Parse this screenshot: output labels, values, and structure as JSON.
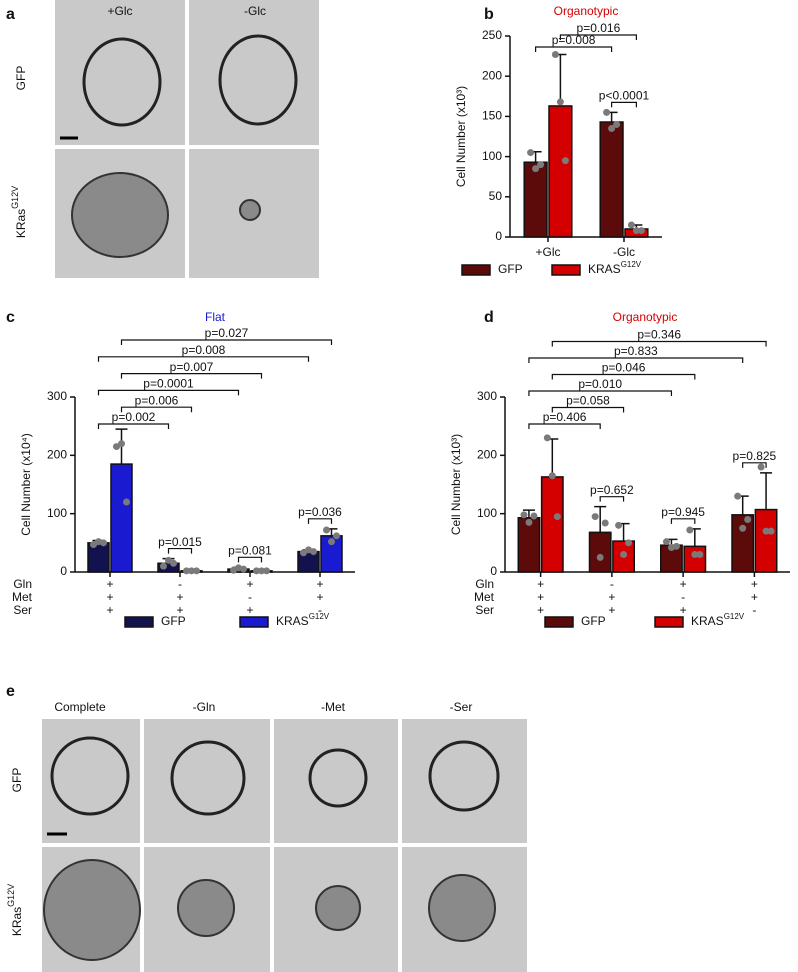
{
  "figure": {
    "panels": [
      "a",
      "b",
      "c",
      "d",
      "e"
    ],
    "panel_a": {
      "columns": [
        "+Glc",
        "-Glc"
      ],
      "rows": [
        {
          "label": "GFP"
        },
        {
          "label": "KRas",
          "sup": "G12V"
        }
      ]
    },
    "panel_e": {
      "columns": [
        "Complete",
        "-Gln",
        "-Met",
        "-Ser"
      ],
      "rows": [
        {
          "label": "GFP"
        },
        {
          "label": "KRas",
          "sup": "G12V"
        }
      ]
    }
  },
  "chart_data": [
    {
      "type": "bar",
      "title": "Organotypic",
      "title_color": "#d40000",
      "y_label": "Cell Number (x10³)",
      "categories": [
        "+Glc",
        "-Glc"
      ],
      "ylim": [
        0,
        250
      ],
      "yticks": [
        0,
        50,
        100,
        150,
        200,
        250
      ],
      "series": [
        {
          "name": "GFP",
          "color": "#5c0a0a",
          "values": [
            93,
            143
          ],
          "errors": [
            13,
            12
          ],
          "points": [
            [
              105,
              85,
              90
            ],
            [
              155,
              135,
              140
            ]
          ]
        },
        {
          "name": "KRAS",
          "name_sup": "G12V",
          "color": "#d40000",
          "values": [
            163,
            10
          ],
          "errors": [
            64,
            5
          ],
          "points": [
            [
              227,
              168,
              95
            ],
            [
              15,
              8,
              8
            ]
          ]
        }
      ],
      "comparisons": [
        {
          "label": "p=0.008",
          "bars": [
            [
              0,
              0
            ],
            [
              1,
              0
            ]
          ]
        },
        {
          "label": "p=0.016",
          "bars": [
            [
              0,
              1
            ],
            [
              1,
              1
            ]
          ]
        },
        {
          "label": "p<0.0001",
          "bars": [
            [
              1,
              0
            ],
            [
              1,
              1
            ]
          ]
        }
      ]
    },
    {
      "type": "bar",
      "title": "Flat",
      "title_color": "#1a1ad0",
      "y_label": "Cell Number (x10⁴)",
      "conditions": {
        "rows": [
          "Gln",
          "Met",
          "Ser"
        ],
        "values": [
          [
            "+",
            "-",
            "+",
            "+"
          ],
          [
            "+",
            "+",
            "-",
            "+"
          ],
          [
            "+",
            "+",
            "+",
            "-"
          ]
        ]
      },
      "ylim": [
        0,
        300
      ],
      "yticks": [
        0,
        100,
        200,
        300
      ],
      "series": [
        {
          "name": "GFP",
          "color": "#12124f",
          "values": [
            50,
            15,
            5,
            35
          ],
          "errors": [
            4,
            8,
            3,
            3
          ],
          "points": [
            [
              47,
              52,
              50
            ],
            [
              10,
              20,
              15
            ],
            [
              3,
              7,
              5
            ],
            [
              33,
              38,
              35
            ]
          ]
        },
        {
          "name": "KRAS",
          "name_sup": "G12V",
          "color": "#1a1ad0",
          "values": [
            185,
            2,
            2,
            62
          ],
          "errors": [
            60,
            1,
            1,
            12
          ],
          "points": [
            [
              215,
              220,
              120
            ],
            [
              2,
              2,
              2
            ],
            [
              2,
              2,
              2
            ],
            [
              72,
              52,
              62
            ]
          ]
        }
      ],
      "comparisons": [
        {
          "label": "p=0.002",
          "bars": [
            [
              0,
              0
            ],
            [
              1,
              0
            ]
          ]
        },
        {
          "label": "p=0.006",
          "bars": [
            [
              0,
              1
            ],
            [
              1,
              1
            ]
          ]
        },
        {
          "label": "p=0.0001",
          "bars": [
            [
              0,
              0
            ],
            [
              2,
              0
            ]
          ]
        },
        {
          "label": "p=0.007",
          "bars": [
            [
              0,
              1
            ],
            [
              2,
              1
            ]
          ]
        },
        {
          "label": "p=0.008",
          "bars": [
            [
              0,
              0
            ],
            [
              3,
              0
            ]
          ]
        },
        {
          "label": "p=0.027",
          "bars": [
            [
              0,
              1
            ],
            [
              3,
              1
            ]
          ]
        },
        {
          "label": "p=0.015",
          "bars": [
            [
              1,
              0
            ],
            [
              1,
              1
            ]
          ]
        },
        {
          "label": "p=0.081",
          "bars": [
            [
              2,
              0
            ],
            [
              2,
              1
            ]
          ]
        },
        {
          "label": "p=0.036",
          "bars": [
            [
              3,
              0
            ],
            [
              3,
              1
            ]
          ]
        }
      ]
    },
    {
      "type": "bar",
      "title": "Organotypic",
      "title_color": "#d40000",
      "y_label": "Cell Number (x10³)",
      "conditions": {
        "rows": [
          "Gln",
          "Met",
          "Ser"
        ],
        "values": [
          [
            "+",
            "-",
            "+",
            "+"
          ],
          [
            "+",
            "+",
            "-",
            "+"
          ],
          [
            "+",
            "+",
            "+",
            "-"
          ]
        ]
      },
      "ylim": [
        0,
        300
      ],
      "yticks": [
        0,
        100,
        200,
        300
      ],
      "series": [
        {
          "name": "GFP",
          "color": "#5c0a0a",
          "values": [
            93,
            68,
            46,
            98
          ],
          "errors": [
            13,
            44,
            10,
            32
          ],
          "points": [
            [
              98,
              85,
              96
            ],
            [
              95,
              25,
              84
            ],
            [
              52,
              42,
              44
            ],
            [
              130,
              75,
              90
            ]
          ]
        },
        {
          "name": "KRAS",
          "name_sup": "G12V",
          "color": "#d40000",
          "values": [
            163,
            53,
            44,
            107
          ],
          "errors": [
            65,
            30,
            30,
            63
          ],
          "points": [
            [
              230,
              165,
              95
            ],
            [
              80,
              30,
              50
            ],
            [
              72,
              30,
              30
            ],
            [
              180,
              70,
              70
            ]
          ]
        }
      ],
      "comparisons": [
        {
          "label": "p=0.406",
          "bars": [
            [
              0,
              0
            ],
            [
              1,
              0
            ]
          ]
        },
        {
          "label": "p=0.058",
          "bars": [
            [
              0,
              1
            ],
            [
              1,
              1
            ]
          ]
        },
        {
          "label": "p=0.010",
          "bars": [
            [
              0,
              0
            ],
            [
              2,
              0
            ]
          ]
        },
        {
          "label": "p=0.046",
          "bars": [
            [
              0,
              1
            ],
            [
              2,
              1
            ]
          ]
        },
        {
          "label": "p=0.833",
          "bars": [
            [
              0,
              0
            ],
            [
              3,
              0
            ]
          ]
        },
        {
          "label": "p=0.346",
          "bars": [
            [
              0,
              1
            ],
            [
              3,
              1
            ]
          ]
        },
        {
          "label": "p=0.652",
          "bars": [
            [
              1,
              0
            ],
            [
              1,
              1
            ]
          ]
        },
        {
          "label": "p=0.945",
          "bars": [
            [
              2,
              0
            ],
            [
              2,
              1
            ]
          ]
        },
        {
          "label": "p=0.825",
          "bars": [
            [
              3,
              0
            ],
            [
              3,
              1
            ]
          ]
        }
      ]
    }
  ]
}
